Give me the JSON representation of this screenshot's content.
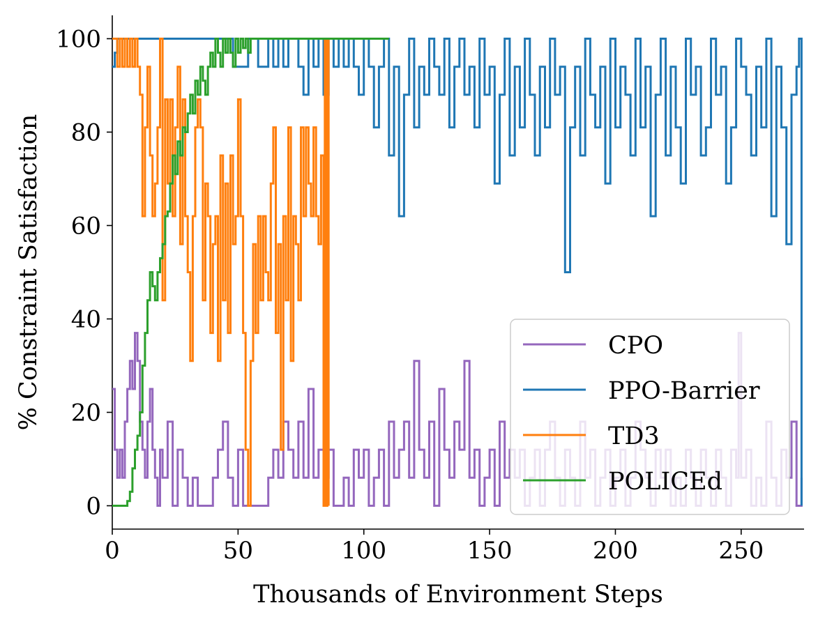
{
  "chart_data": {
    "type": "line",
    "title": "",
    "xlabel": "Thousands of Environment Steps",
    "ylabel": "% Constraint Satisfaction",
    "xlim": [
      0,
      275
    ],
    "ylim": [
      -5,
      105
    ],
    "xticks": [
      0,
      50,
      100,
      150,
      200,
      250
    ],
    "xtick_labels": [
      "0",
      "50",
      "100",
      "150",
      "200",
      "250"
    ],
    "yticks": [
      0,
      20,
      40,
      60,
      80,
      100
    ],
    "ytick_labels": [
      "0",
      "20",
      "40",
      "60",
      "80",
      "100"
    ],
    "grid": false,
    "legend_position": "lower-right",
    "series": [
      {
        "name": "CPO",
        "color": "#9467bd",
        "x": [
          0,
          1,
          2,
          3,
          4,
          5,
          6,
          7,
          8,
          9,
          10,
          11,
          12,
          13,
          14,
          15,
          16,
          17,
          18,
          19,
          20,
          22,
          24,
          26,
          28,
          30,
          32,
          34,
          36,
          38,
          40,
          42,
          44,
          46,
          48,
          50,
          52,
          55,
          58,
          60,
          62,
          64,
          66,
          68,
          70,
          72,
          74,
          76,
          78,
          80,
          82,
          84,
          86,
          88,
          90,
          92,
          94,
          96,
          98,
          100,
          102,
          104,
          106,
          108,
          110,
          112,
          114,
          116,
          118,
          120,
          122,
          124,
          126,
          128,
          130,
          132,
          134,
          136,
          138,
          140,
          142,
          144,
          146,
          148,
          150,
          152,
          154,
          156,
          158,
          160,
          162,
          164,
          166,
          168,
          170,
          172,
          174,
          176,
          178,
          180,
          182,
          184,
          186,
          188,
          190,
          192,
          194,
          196,
          198,
          200,
          202,
          204,
          206,
          208,
          210,
          212,
          214,
          216,
          218,
          220,
          222,
          224,
          226,
          228,
          230,
          232,
          234,
          236,
          238,
          240,
          242,
          244,
          246,
          248,
          249,
          250,
          252,
          254,
          256,
          258,
          260,
          262,
          264,
          266,
          268,
          270,
          272,
          274
        ],
        "y": [
          25,
          12,
          6,
          12,
          6,
          18,
          25,
          31,
          25,
          37,
          31,
          18,
          12,
          6,
          18,
          25,
          12,
          6,
          0,
          12,
          6,
          18,
          0,
          12,
          6,
          0,
          6,
          0,
          0,
          0,
          6,
          12,
          18,
          6,
          0,
          12,
          0,
          0,
          0,
          0,
          6,
          12,
          6,
          18,
          12,
          6,
          18,
          6,
          25,
          6,
          12,
          6,
          12,
          0,
          0,
          6,
          0,
          12,
          6,
          12,
          0,
          6,
          12,
          0,
          18,
          6,
          12,
          18,
          6,
          31,
          12,
          6,
          18,
          0,
          25,
          12,
          6,
          18,
          12,
          31,
          6,
          12,
          0,
          6,
          12,
          0,
          18,
          6,
          12,
          6,
          12,
          0,
          6,
          12,
          0,
          12,
          18,
          6,
          0,
          12,
          6,
          0,
          18,
          6,
          12,
          0,
          6,
          12,
          0,
          6,
          12,
          0,
          6,
          18,
          12,
          6,
          0,
          12,
          6,
          12,
          0,
          6,
          0,
          12,
          6,
          0,
          12,
          6,
          0,
          12,
          6,
          0,
          12,
          6,
          37,
          6,
          12,
          0,
          6,
          0,
          18,
          6,
          0,
          12,
          6,
          18,
          0,
          6
        ]
      },
      {
        "name": "PPO-Barrier",
        "color": "#1f77b4",
        "x": [
          0,
          1,
          2,
          5,
          10,
          20,
          30,
          40,
          45,
          46,
          48,
          52,
          54,
          56,
          58,
          60,
          62,
          64,
          66,
          68,
          70,
          72,
          74,
          76,
          78,
          80,
          82,
          84,
          86,
          88,
          90,
          92,
          94,
          96,
          98,
          100,
          102,
          104,
          106,
          108,
          110,
          112,
          114,
          116,
          118,
          120,
          122,
          124,
          126,
          128,
          130,
          132,
          134,
          136,
          138,
          140,
          142,
          144,
          146,
          148,
          150,
          152,
          154,
          156,
          158,
          160,
          162,
          164,
          166,
          168,
          170,
          172,
          174,
          176,
          178,
          180,
          182,
          184,
          186,
          188,
          190,
          192,
          194,
          196,
          198,
          200,
          202,
          204,
          206,
          208,
          210,
          212,
          214,
          216,
          218,
          220,
          222,
          224,
          226,
          228,
          230,
          232,
          234,
          236,
          238,
          240,
          242,
          244,
          246,
          248,
          250,
          252,
          254,
          256,
          258,
          260,
          262,
          264,
          266,
          268,
          270,
          272,
          273,
          274
        ],
        "y": [
          94,
          97,
          100,
          100,
          100,
          100,
          100,
          100,
          100,
          100,
          94,
          94,
          100,
          100,
          94,
          94,
          100,
          94,
          100,
          94,
          100,
          100,
          94,
          88,
          100,
          94,
          100,
          88,
          100,
          94,
          100,
          94,
          100,
          94,
          88,
          100,
          94,
          81,
          94,
          100,
          75,
          94,
          62,
          88,
          100,
          81,
          94,
          88,
          100,
          94,
          88,
          100,
          81,
          94,
          100,
          88,
          94,
          81,
          100,
          88,
          94,
          69,
          88,
          100,
          75,
          94,
          81,
          100,
          88,
          75,
          94,
          81,
          100,
          88,
          94,
          50,
          81,
          94,
          75,
          100,
          88,
          81,
          94,
          69,
          100,
          81,
          94,
          88,
          75,
          100,
          81,
          94,
          62,
          88,
          100,
          75,
          94,
          81,
          69,
          100,
          88,
          94,
          75,
          81,
          100,
          88,
          94,
          69,
          81,
          100,
          94,
          88,
          75,
          94,
          81,
          100,
          62,
          94,
          81,
          56,
          88,
          94,
          100,
          0
        ]
      },
      {
        "name": "TD3",
        "color": "#ff7f0e",
        "x": [
          0,
          1,
          2,
          3,
          4,
          5,
          6,
          7,
          8,
          9,
          10,
          11,
          12,
          13,
          14,
          15,
          16,
          17,
          18,
          19,
          20,
          21,
          22,
          23,
          24,
          25,
          26,
          27,
          28,
          29,
          30,
          31,
          32,
          33,
          34,
          35,
          36,
          37,
          38,
          39,
          40,
          41,
          42,
          43,
          44,
          45,
          46,
          47,
          48,
          49,
          50,
          51,
          52,
          53,
          54,
          55,
          56,
          57,
          58,
          59,
          60,
          61,
          62,
          63,
          64,
          65,
          66,
          67,
          68,
          69,
          70,
          71,
          72,
          73,
          74,
          75,
          76,
          77,
          78,
          79,
          80,
          81,
          82,
          83,
          84,
          84.5,
          85,
          85.5,
          86
        ],
        "y": [
          100,
          100,
          94,
          100,
          94,
          100,
          94,
          100,
          94,
          100,
          94,
          88,
          62,
          81,
          94,
          75,
          62,
          69,
          81,
          100,
          44,
          87,
          69,
          87,
          62,
          81,
          94,
          56,
          87,
          62,
          50,
          31,
          62,
          81,
          87,
          81,
          44,
          69,
          62,
          37,
          56,
          62,
          31,
          75,
          44,
          69,
          37,
          75,
          56,
          62,
          87,
          62,
          37,
          12,
          0,
          31,
          56,
          37,
          62,
          44,
          62,
          50,
          44,
          69,
          81,
          37,
          56,
          12,
          62,
          44,
          81,
          31,
          62,
          56,
          44,
          81,
          62,
          81,
          69,
          62,
          81,
          62,
          56,
          75,
          0,
          100,
          0,
          100,
          0
        ]
      },
      {
        "name": "POLICEd",
        "color": "#2ca02c",
        "x": [
          0,
          2,
          4,
          6,
          7,
          8,
          9,
          10,
          11,
          12,
          13,
          14,
          15,
          16,
          17,
          18,
          19,
          20,
          21,
          22,
          23,
          24,
          25,
          26,
          27,
          28,
          29,
          30,
          31,
          32,
          33,
          34,
          35,
          36,
          37,
          38,
          39,
          40,
          41,
          42,
          43,
          44,
          45,
          46,
          47,
          48,
          49,
          50,
          51,
          52,
          53,
          54,
          55,
          60,
          70,
          80,
          90,
          100,
          110
        ],
        "y": [
          0,
          0,
          0,
          1,
          3,
          8,
          12,
          15,
          20,
          30,
          37,
          44,
          50,
          47,
          44,
          50,
          53,
          56,
          62,
          63,
          69,
          75,
          71,
          78,
          75,
          81,
          80,
          84,
          88,
          84,
          91,
          88,
          94,
          91,
          88,
          94,
          97,
          94,
          100,
          97,
          94,
          100,
          97,
          100,
          97,
          94,
          100,
          97,
          100,
          98,
          100,
          97,
          100,
          100,
          100,
          100,
          100,
          100,
          100
        ]
      }
    ]
  }
}
